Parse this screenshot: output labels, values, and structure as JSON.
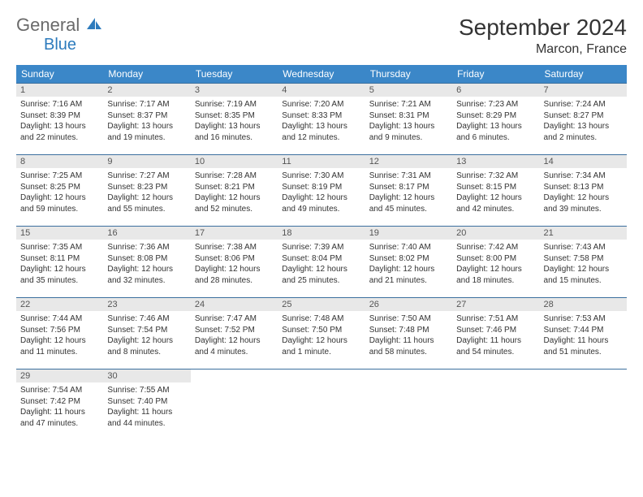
{
  "brand": {
    "general": "General",
    "blue": "Blue",
    "logo_color": "#2d7bbd"
  },
  "title": "September 2024",
  "location": "Marcon, France",
  "header_row_bg": "#3b87c8",
  "week_border_color": "#3b6f9e",
  "day_num_bg": "#e8e8e8",
  "weekdays": [
    "Sunday",
    "Monday",
    "Tuesday",
    "Wednesday",
    "Thursday",
    "Friday",
    "Saturday"
  ],
  "weeks": [
    [
      {
        "n": "1",
        "sr": "7:16 AM",
        "ss": "8:39 PM",
        "dl": "13 hours and 22 minutes."
      },
      {
        "n": "2",
        "sr": "7:17 AM",
        "ss": "8:37 PM",
        "dl": "13 hours and 19 minutes."
      },
      {
        "n": "3",
        "sr": "7:19 AM",
        "ss": "8:35 PM",
        "dl": "13 hours and 16 minutes."
      },
      {
        "n": "4",
        "sr": "7:20 AM",
        "ss": "8:33 PM",
        "dl": "13 hours and 12 minutes."
      },
      {
        "n": "5",
        "sr": "7:21 AM",
        "ss": "8:31 PM",
        "dl": "13 hours and 9 minutes."
      },
      {
        "n": "6",
        "sr": "7:23 AM",
        "ss": "8:29 PM",
        "dl": "13 hours and 6 minutes."
      },
      {
        "n": "7",
        "sr": "7:24 AM",
        "ss": "8:27 PM",
        "dl": "13 hours and 2 minutes."
      }
    ],
    [
      {
        "n": "8",
        "sr": "7:25 AM",
        "ss": "8:25 PM",
        "dl": "12 hours and 59 minutes."
      },
      {
        "n": "9",
        "sr": "7:27 AM",
        "ss": "8:23 PM",
        "dl": "12 hours and 55 minutes."
      },
      {
        "n": "10",
        "sr": "7:28 AM",
        "ss": "8:21 PM",
        "dl": "12 hours and 52 minutes."
      },
      {
        "n": "11",
        "sr": "7:30 AM",
        "ss": "8:19 PM",
        "dl": "12 hours and 49 minutes."
      },
      {
        "n": "12",
        "sr": "7:31 AM",
        "ss": "8:17 PM",
        "dl": "12 hours and 45 minutes."
      },
      {
        "n": "13",
        "sr": "7:32 AM",
        "ss": "8:15 PM",
        "dl": "12 hours and 42 minutes."
      },
      {
        "n": "14",
        "sr": "7:34 AM",
        "ss": "8:13 PM",
        "dl": "12 hours and 39 minutes."
      }
    ],
    [
      {
        "n": "15",
        "sr": "7:35 AM",
        "ss": "8:11 PM",
        "dl": "12 hours and 35 minutes."
      },
      {
        "n": "16",
        "sr": "7:36 AM",
        "ss": "8:08 PM",
        "dl": "12 hours and 32 minutes."
      },
      {
        "n": "17",
        "sr": "7:38 AM",
        "ss": "8:06 PM",
        "dl": "12 hours and 28 minutes."
      },
      {
        "n": "18",
        "sr": "7:39 AM",
        "ss": "8:04 PM",
        "dl": "12 hours and 25 minutes."
      },
      {
        "n": "19",
        "sr": "7:40 AM",
        "ss": "8:02 PM",
        "dl": "12 hours and 21 minutes."
      },
      {
        "n": "20",
        "sr": "7:42 AM",
        "ss": "8:00 PM",
        "dl": "12 hours and 18 minutes."
      },
      {
        "n": "21",
        "sr": "7:43 AM",
        "ss": "7:58 PM",
        "dl": "12 hours and 15 minutes."
      }
    ],
    [
      {
        "n": "22",
        "sr": "7:44 AM",
        "ss": "7:56 PM",
        "dl": "12 hours and 11 minutes."
      },
      {
        "n": "23",
        "sr": "7:46 AM",
        "ss": "7:54 PM",
        "dl": "12 hours and 8 minutes."
      },
      {
        "n": "24",
        "sr": "7:47 AM",
        "ss": "7:52 PM",
        "dl": "12 hours and 4 minutes."
      },
      {
        "n": "25",
        "sr": "7:48 AM",
        "ss": "7:50 PM",
        "dl": "12 hours and 1 minute."
      },
      {
        "n": "26",
        "sr": "7:50 AM",
        "ss": "7:48 PM",
        "dl": "11 hours and 58 minutes."
      },
      {
        "n": "27",
        "sr": "7:51 AM",
        "ss": "7:46 PM",
        "dl": "11 hours and 54 minutes."
      },
      {
        "n": "28",
        "sr": "7:53 AM",
        "ss": "7:44 PM",
        "dl": "11 hours and 51 minutes."
      }
    ],
    [
      {
        "n": "29",
        "sr": "7:54 AM",
        "ss": "7:42 PM",
        "dl": "11 hours and 47 minutes."
      },
      {
        "n": "30",
        "sr": "7:55 AM",
        "ss": "7:40 PM",
        "dl": "11 hours and 44 minutes."
      },
      null,
      null,
      null,
      null,
      null
    ]
  ],
  "labels": {
    "sunrise": "Sunrise:",
    "sunset": "Sunset:",
    "daylight": "Daylight:"
  }
}
